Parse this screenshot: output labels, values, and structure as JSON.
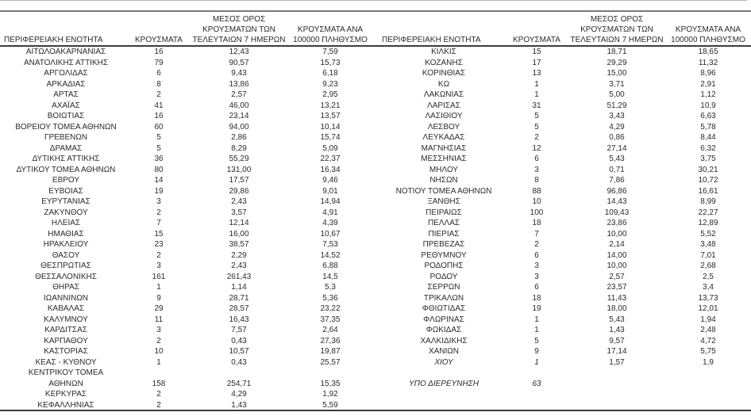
{
  "colors": {
    "background": "#ffffff",
    "text": "#2b2b2b",
    "rule_light": "#b5b5b5",
    "rule_gray": "#7a7a7a",
    "rule_dark": "#3d3d3d"
  },
  "headers": {
    "region": "ΠΕΡΙΦΕΡΕΙΑΚΗ ΕΝΟΤΗΤΑ",
    "cases": "ΚΡΟΥΣΜΑΤΑ",
    "avg7_line1": "ΜΕΣΟΣ ΟΡΟΣ",
    "avg7_line2": "ΚΡΟΥΣΜΑΤΩΝ ΤΩΝ",
    "avg7_line3": "ΤΕΛΕΥΤΑΙΩΝ 7 ΗΜΕΡΩΝ",
    "per100k_line1": "ΚΡΟΥΣΜΑΤΑ ΑΝΑ",
    "per100k_line2": "100000 ΠΛΗΘΥΣΜΟ"
  },
  "left_table": {
    "rows": [
      {
        "region": "ΑΙΤΩΛΟΑΚΑΡΝΑΝΙΑΣ",
        "cases": "16",
        "avg7": "12,43",
        "per100k": "7,59"
      },
      {
        "region": "ΑΝΑΤΟΛΙΚΗΣ ΑΤΤΙΚΗΣ",
        "cases": "79",
        "avg7": "90,57",
        "per100k": "15,73"
      },
      {
        "region": "ΑΡΓΟΛΙΔΑΣ",
        "cases": "6",
        "avg7": "9,43",
        "per100k": "6,18"
      },
      {
        "region": "ΑΡΚΑΔΙΑΣ",
        "cases": "8",
        "avg7": "13,86",
        "per100k": "9,23"
      },
      {
        "region": "ΑΡΤΑΣ",
        "cases": "2",
        "avg7": "2,57",
        "per100k": "2,95"
      },
      {
        "region": "ΑΧΑΪΑΣ",
        "cases": "41",
        "avg7": "46,00",
        "per100k": "13,21"
      },
      {
        "region": "ΒΟΙΩΤΙΑΣ",
        "cases": "16",
        "avg7": "23,14",
        "per100k": "13,57"
      },
      {
        "region": "ΒΟΡΕΙΟΥ ΤΟΜΕΑ ΑΘΗΝΩΝ",
        "cases": "60",
        "avg7": "94,00",
        "per100k": "10,14"
      },
      {
        "region": "ΓΡΕΒΕΝΩΝ",
        "cases": "5",
        "avg7": "2,86",
        "per100k": "15,74"
      },
      {
        "region": "ΔΡΑΜΑΣ",
        "cases": "5",
        "avg7": "8,29",
        "per100k": "5,09"
      },
      {
        "region": "ΔΥΤΙΚΗΣ ΑΤΤΙΚΗΣ",
        "cases": "36",
        "avg7": "55,29",
        "per100k": "22,37"
      },
      {
        "region": "ΔΥΤΙΚΟΥ ΤΟΜΕΑ ΑΘΗΝΩΝ",
        "cases": "80",
        "avg7": "131,00",
        "per100k": "16,34"
      },
      {
        "region": "ΕΒΡΟΥ",
        "cases": "14",
        "avg7": "17,57",
        "per100k": "9,46"
      },
      {
        "region": "ΕΥΒΟΙΑΣ",
        "cases": "19",
        "avg7": "29,86",
        "per100k": "9,01"
      },
      {
        "region": "ΕΥΡΥΤΑΝΙΑΣ",
        "cases": "3",
        "avg7": "2,43",
        "per100k": "14,94"
      },
      {
        "region": "ΖΑΚΥΝΘΟΥ",
        "cases": "2",
        "avg7": "3,57",
        "per100k": "4,91"
      },
      {
        "region": "ΗΛΕΙΑΣ",
        "cases": "7",
        "avg7": "12,14",
        "per100k": "4,39"
      },
      {
        "region": "ΗΜΑΘΙΑΣ",
        "cases": "15",
        "avg7": "16,00",
        "per100k": "10,67"
      },
      {
        "region": "ΗΡΑΚΛΕΙΟΥ",
        "cases": "23",
        "avg7": "38,57",
        "per100k": "7,53"
      },
      {
        "region": "ΘΑΣΟΥ",
        "cases": "2",
        "avg7": "2,29",
        "per100k": "14,52"
      },
      {
        "region": "ΘΕΣΠΡΩΤΙΑΣ",
        "cases": "3",
        "avg7": "2,43",
        "per100k": "6,88"
      },
      {
        "region": "ΘΕΣΣΑΛΟΝΙΚΗΣ",
        "cases": "161",
        "avg7": "261,43",
        "per100k": "14,5"
      },
      {
        "region": "ΘΗΡΑΣ",
        "cases": "1",
        "avg7": "1,14",
        "per100k": "5,3"
      },
      {
        "region": "ΙΩΑΝΝΙΝΩΝ",
        "cases": "9",
        "avg7": "28,71",
        "per100k": "5,36"
      },
      {
        "region": "ΚΑΒΑΛΑΣ",
        "cases": "29",
        "avg7": "28,57",
        "per100k": "23,22"
      },
      {
        "region": "ΚΑΛΥΜΝΟΥ",
        "cases": "11",
        "avg7": "16,43",
        "per100k": "37,35"
      },
      {
        "region": "ΚΑΡΔΙΤΣΑΣ",
        "cases": "3",
        "avg7": "7,57",
        "per100k": "2,64"
      },
      {
        "region": "ΚΑΡΠΑΘΟΥ",
        "cases": "2",
        "avg7": "0,43",
        "per100k": "27,36"
      },
      {
        "region": "ΚΑΣΤΟΡΙΑΣ",
        "cases": "10",
        "avg7": "10,57",
        "per100k": "19,87"
      },
      {
        "region": "ΚΕΑΣ - ΚΥΘΝΟΥ",
        "cases": "1",
        "avg7": "0,43",
        "per100k": "25,57"
      },
      {
        "region": "ΚΕΝΤΡΙΚΟΥ ΤΟΜΕΑ\nΑΘΗΝΩΝ",
        "cases": "158",
        "avg7": "254,71",
        "per100k": "15,35"
      },
      {
        "region": "ΚΕΡΚΥΡΑΣ",
        "cases": "2",
        "avg7": "4,29",
        "per100k": "1,92"
      },
      {
        "region": "ΚΕΦΑΛΛΗΝΙΑΣ",
        "cases": "2",
        "avg7": "1,43",
        "per100k": "5,59"
      }
    ]
  },
  "right_table": {
    "rows": [
      {
        "region": "ΚΙΛΚΙΣ",
        "cases": "15",
        "avg7": "18,71",
        "per100k": "18,65"
      },
      {
        "region": "ΚΟΖΑΝΗΣ",
        "cases": "17",
        "avg7": "29,29",
        "per100k": "11,32"
      },
      {
        "region": "ΚΟΡΙΝΘΙΑΣ",
        "cases": "13",
        "avg7": "15,00",
        "per100k": "8,96"
      },
      {
        "region": "ΚΩ",
        "cases": "1",
        "avg7": "3,71",
        "per100k": "2,91"
      },
      {
        "region": "ΛΑΚΩΝΙΑΣ",
        "cases": "1",
        "avg7": "5,00",
        "per100k": "1,12"
      },
      {
        "region": "ΛΑΡΙΣΑΣ",
        "cases": "31",
        "avg7": "51,29",
        "per100k": "10,9"
      },
      {
        "region": "ΛΑΣΙΘΙΟΥ",
        "cases": "5",
        "avg7": "3,43",
        "per100k": "6,63"
      },
      {
        "region": "ΛΕΣΒΟΥ",
        "cases": "5",
        "avg7": "4,29",
        "per100k": "5,78"
      },
      {
        "region": "ΛΕΥΚΑΔΑΣ",
        "cases": "2",
        "avg7": "0,86",
        "per100k": "8,44"
      },
      {
        "region": "ΜΑΓΝΗΣΙΑΣ",
        "cases": "12",
        "avg7": "27,14",
        "per100k": "6,32"
      },
      {
        "region": "ΜΕΣΣΗΝΙΑΣ",
        "cases": "6",
        "avg7": "5,43",
        "per100k": "3,75"
      },
      {
        "region": "ΜΗΛΟΥ",
        "cases": "3",
        "avg7": "0,71",
        "per100k": "30,21"
      },
      {
        "region": "ΝΗΣΩΝ",
        "cases": "8",
        "avg7": "7,86",
        "per100k": "10,72"
      },
      {
        "region": "ΝΟΤΙΟΥ ΤΟΜΕΑ ΑΘΗΝΩΝ",
        "cases": "88",
        "avg7": "96,86",
        "per100k": "16,61"
      },
      {
        "region": "ΞΑΝΘΗΣ",
        "cases": "10",
        "avg7": "14,43",
        "per100k": "8,99"
      },
      {
        "region": "ΠΕΙΡΑΙΩΣ",
        "cases": "100",
        "avg7": "109,43",
        "per100k": "22,27"
      },
      {
        "region": "ΠΕΛΛΑΣ",
        "cases": "18",
        "avg7": "23,86",
        "per100k": "12,89"
      },
      {
        "region": "ΠΙΕΡΙΑΣ",
        "cases": "7",
        "avg7": "10,00",
        "per100k": "5,52"
      },
      {
        "region": "ΠΡΕΒΕΖΑΣ",
        "cases": "2",
        "avg7": "2,14",
        "per100k": "3,48"
      },
      {
        "region": "ΡΕΘΥΜΝΟΥ",
        "cases": "6",
        "avg7": "14,00",
        "per100k": "7,01"
      },
      {
        "region": "ΡΟΔΟΠΗΣ",
        "cases": "3",
        "avg7": "10,00",
        "per100k": "2,68"
      },
      {
        "region": "ΡΟΔΟΥ",
        "cases": "3",
        "avg7": "2,57",
        "per100k": "2,5"
      },
      {
        "region": "ΣΕΡΡΩΝ",
        "cases": "6",
        "avg7": "23,57",
        "per100k": "3,4"
      },
      {
        "region": "ΤΡΙΚΑΛΩΝ",
        "cases": "18",
        "avg7": "11,43",
        "per100k": "13,73"
      },
      {
        "region": "ΦΘΙΩΤΙΔΑΣ",
        "cases": "19",
        "avg7": "18,00",
        "per100k": "12,01"
      },
      {
        "region": "ΦΛΩΡΙΝΑΣ",
        "cases": "1",
        "avg7": "5,43",
        "per100k": "1,94"
      },
      {
        "region": "ΦΩΚΙΔΑΣ",
        "cases": "1",
        "avg7": "1,43",
        "per100k": "2,48"
      },
      {
        "region": "ΧΑΛΚΙΔΙΚΗΣ",
        "cases": "5",
        "avg7": "9,57",
        "per100k": "4,72"
      },
      {
        "region": "ΧΑΝΙΩΝ",
        "cases": "9",
        "avg7": "17,14",
        "per100k": "5,75"
      },
      {
        "region": "ΧΙΟΥ",
        "cases": "1",
        "avg7": "1,57",
        "per100k": "1,9",
        "italic": true
      },
      {
        "region": "",
        "cases": "",
        "avg7": "",
        "per100k": "",
        "spacer": true
      },
      {
        "region": "ΥΠΟ ΔΙΕΡΕΥΝΗΣΗ",
        "cases": "63",
        "avg7": "",
        "per100k": "",
        "italic": true
      }
    ]
  }
}
